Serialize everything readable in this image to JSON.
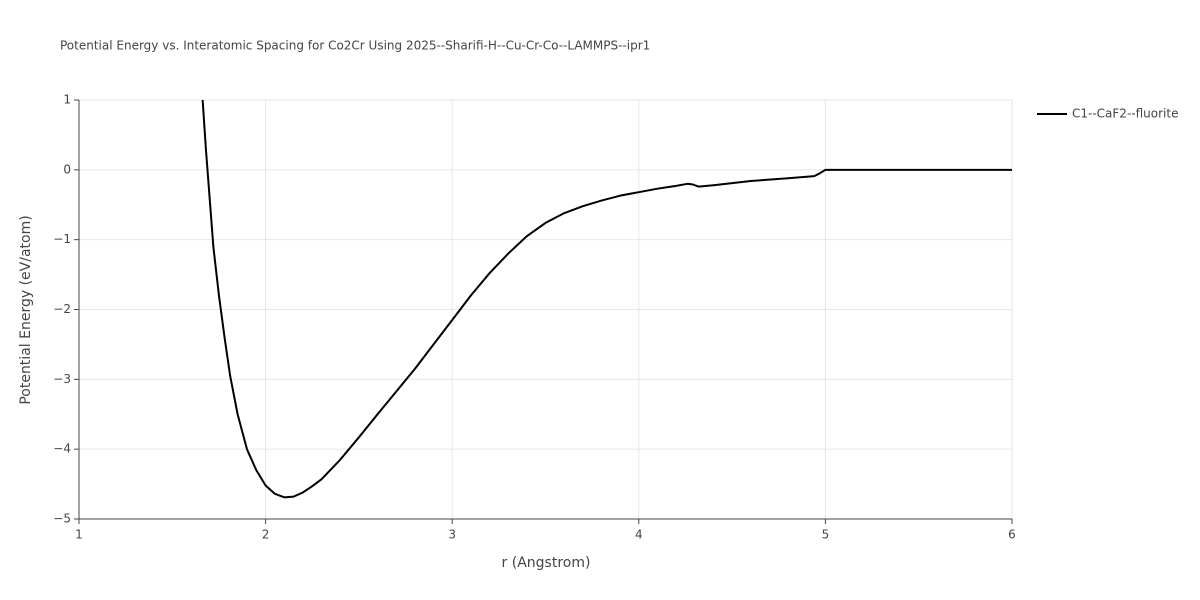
{
  "chart_data": {
    "type": "line",
    "title": "Potential Energy vs. Interatomic Spacing for Co2Cr Using 2025--Sharifi-H--Cu-Cr-Co--LAMMPS--ipr1",
    "x_label": "r (Angstrom)",
    "y_label": "Potential Energy (eV/atom)",
    "x": [
      1.66,
      1.68,
      1.7,
      1.72,
      1.75,
      1.78,
      1.81,
      1.85,
      1.9,
      1.95,
      2.0,
      2.05,
      2.1,
      2.15,
      2.2,
      2.25,
      2.3,
      2.4,
      2.5,
      2.6,
      2.8,
      3.0,
      3.1,
      3.2,
      3.3,
      3.4,
      3.5,
      3.6,
      3.7,
      3.8,
      3.9,
      4.0,
      4.1,
      4.2,
      4.26,
      4.29,
      4.32,
      4.4,
      4.6,
      4.8,
      4.94,
      4.97,
      5.0,
      6.0
    ],
    "series": [
      {
        "name": "C1--CaF2--fluorite",
        "color": "#000000",
        "values": [
          1.1,
          0.3,
          -0.4,
          -1.1,
          -1.8,
          -2.4,
          -2.95,
          -3.5,
          -4.0,
          -4.3,
          -4.52,
          -4.64,
          -4.69,
          -4.68,
          -4.62,
          -4.53,
          -4.43,
          -4.15,
          -3.83,
          -3.5,
          -2.85,
          -2.15,
          -1.8,
          -1.48,
          -1.2,
          -0.95,
          -0.76,
          -0.62,
          -0.52,
          -0.44,
          -0.37,
          -0.32,
          -0.27,
          -0.23,
          -0.2,
          -0.21,
          -0.24,
          -0.22,
          -0.16,
          -0.12,
          -0.09,
          -0.05,
          0,
          0
        ]
      }
    ],
    "xlim": [
      1,
      6
    ],
    "xticks": [
      1,
      2,
      3,
      4,
      5,
      6
    ],
    "ylim": [
      -5,
      1
    ],
    "yticks": [
      {
        "value": -5,
        "label": "−5"
      },
      {
        "value": -4,
        "label": "−4"
      },
      {
        "value": -3,
        "label": "−3"
      },
      {
        "value": -2,
        "label": "−2"
      },
      {
        "value": -1,
        "label": "−1"
      },
      0,
      1
    ],
    "grid": true,
    "legend": "right"
  }
}
